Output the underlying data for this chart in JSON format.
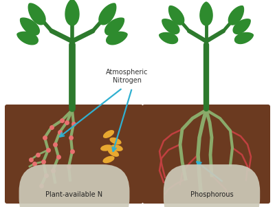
{
  "bg_color": "#ffffff",
  "soil_color": "#6B3A20",
  "stem_color": "#2d7a2d",
  "leaf_color": "#2e8b2e",
  "leaf_dark": "#1f6b1f",
  "root_color": "#8aaa6a",
  "nodule_color": "#e87070",
  "fungi_color": "#c04040",
  "nitrogen_color": "#e8a830",
  "arrow_color": "#30b0d0",
  "label_bg": "#ccc9b8",
  "label_left": "Plant-available N",
  "label_right": "Phosphorous",
  "label_atm": "Atmospheric\nNitrogen"
}
